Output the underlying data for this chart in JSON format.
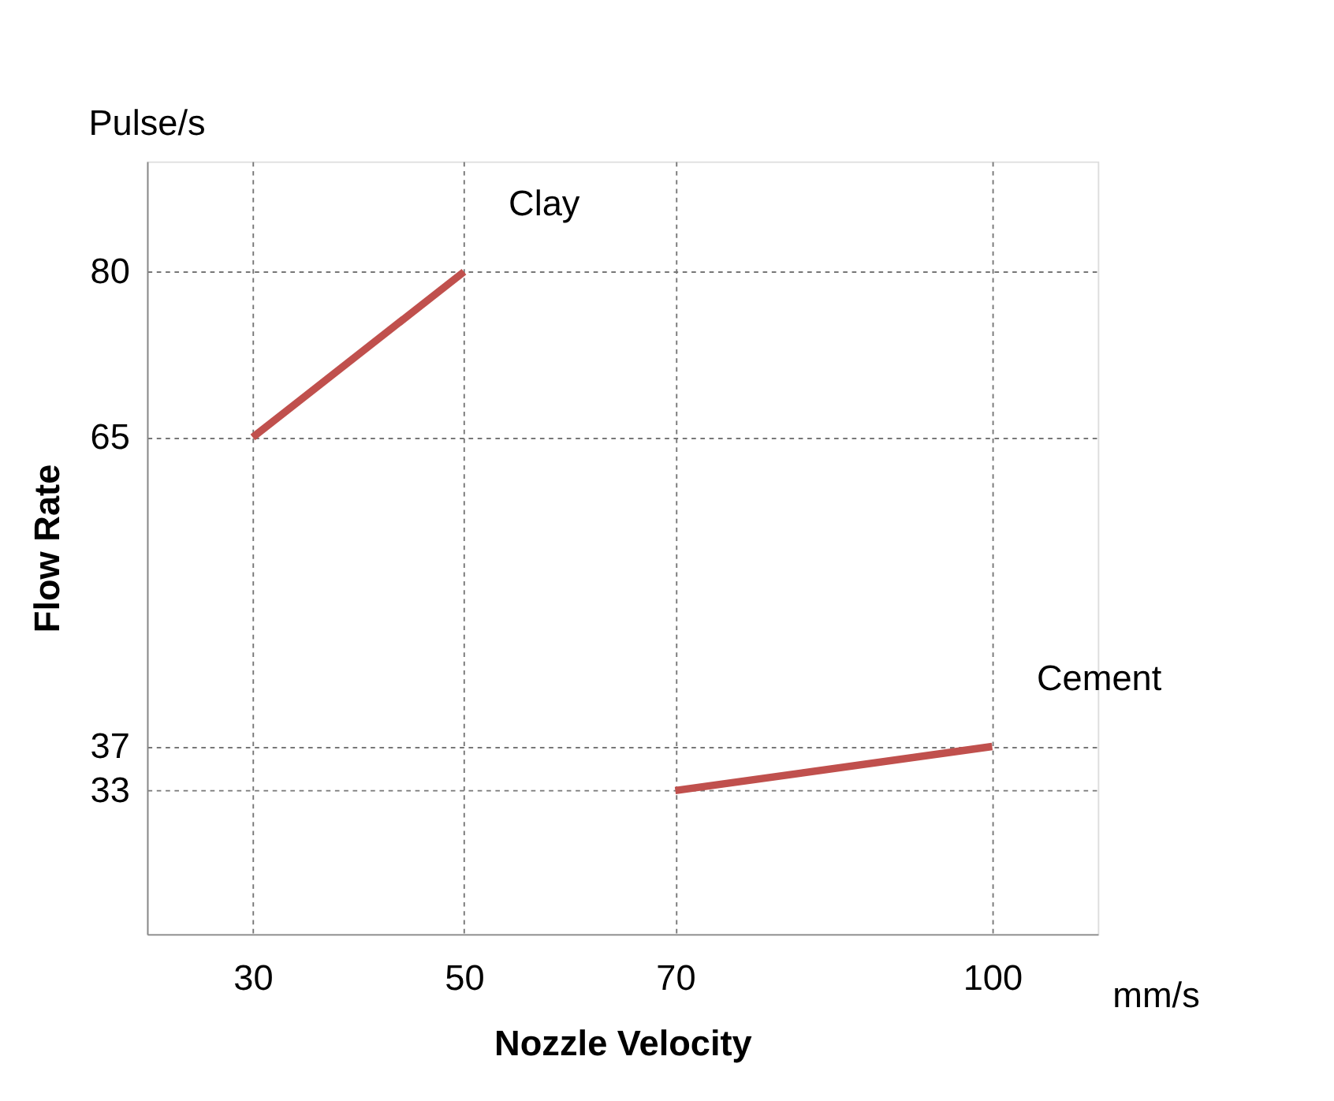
{
  "chart_data": {
    "type": "line",
    "xlabel": "Nozzle Velocity",
    "ylabel": "Flow Rate",
    "annotations": [
      "Pulse/s",
      "mm/s"
    ],
    "series": [
      {
        "name": "Clay",
        "color": "#c0504d",
        "x": [
          30,
          50
        ],
        "values": [
          65,
          80
        ]
      },
      {
        "name": "Cement",
        "color": "#c0504d",
        "x": [
          70,
          100
        ],
        "values": [
          33,
          37
        ]
      }
    ],
    "xlim": [
      20,
      110
    ],
    "xticks": [
      30,
      50,
      70,
      100
    ],
    "ylim": [
      20,
      90
    ],
    "yticks": [
      33,
      37,
      65,
      80
    ],
    "grid": true,
    "legend": false,
    "marker": "none",
    "line_style": "solid"
  }
}
